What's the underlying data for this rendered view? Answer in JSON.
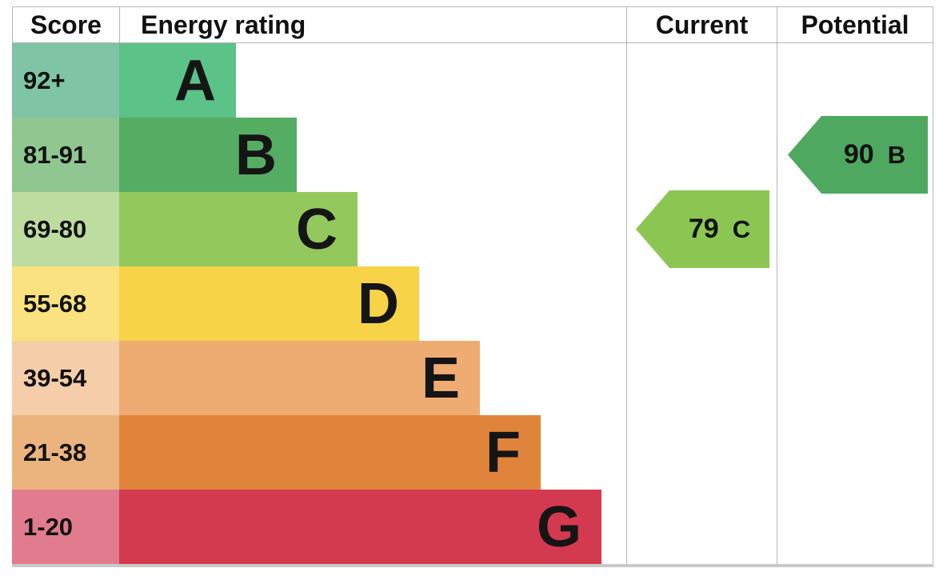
{
  "header": {
    "score": "Score",
    "rating": "Energy rating",
    "current": "Current",
    "potential": "Potential"
  },
  "chart_data": {
    "type": "bar",
    "subtype": "epc-energy-rating-chart",
    "title": "Energy rating",
    "columns": [
      "Score",
      "Energy rating",
      "Current",
      "Potential"
    ],
    "bands": [
      {
        "letter": "A",
        "score_range": "92+",
        "color": "#5BC288",
        "score_bg": "#7FC4A4"
      },
      {
        "letter": "B",
        "score_range": "81-91",
        "color": "#55AD63",
        "score_bg": "#90C791"
      },
      {
        "letter": "C",
        "score_range": "69-80",
        "color": "#93C95C",
        "score_bg": "#BCDCA0"
      },
      {
        "letter": "D",
        "score_range": "55-68",
        "color": "#F7D348",
        "score_bg": "#F9E27F"
      },
      {
        "letter": "E",
        "score_range": "39-54",
        "color": "#EFAC72",
        "score_bg": "#F5CDA8"
      },
      {
        "letter": "F",
        "score_range": "21-38",
        "color": "#E0843B",
        "score_bg": "#EBB47F"
      },
      {
        "letter": "G",
        "score_range": "1-20",
        "color": "#D43A4F",
        "score_bg": "#E17B8E"
      }
    ],
    "current": {
      "value": "79",
      "letter": "C",
      "band_index": 2,
      "color": "#8CC652"
    },
    "potential": {
      "value": "90",
      "letter": "B",
      "band_index": 1,
      "color": "#4EA85F"
    }
  }
}
